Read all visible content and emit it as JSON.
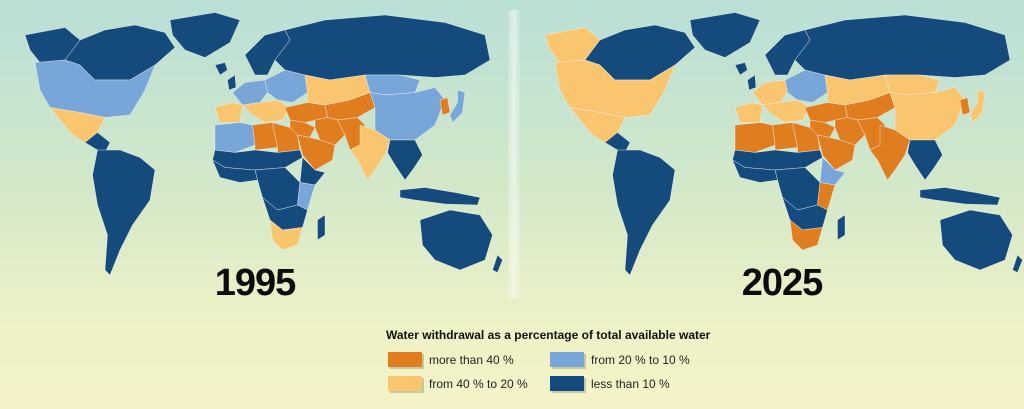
{
  "maps": [
    {
      "year": "1995",
      "regions": {
        "greenland": "less_than_10",
        "canada": "less_than_10",
        "alaska": "less_than_10",
        "usa": "20_to_10",
        "mexico": "40_to_20",
        "central_america": "less_than_10",
        "south_america": "less_than_10",
        "iceland_uk": "less_than_10",
        "west_europe": "20_to_10",
        "iberia": "40_to_20",
        "italy_balkans": "40_to_20",
        "scandinavia": "less_than_10",
        "east_europe": "20_to_10",
        "russia": "less_than_10",
        "north_africa_west": "20_to_10",
        "north_africa_east": "more_than_40",
        "libya_egypt": "more_than_40",
        "sahel": "less_than_10",
        "west_africa": "less_than_10",
        "central_africa": "less_than_10",
        "horn_of_africa": "less_than_10",
        "east_africa": "20_to_10",
        "southern_africa_west": "less_than_10",
        "south_africa": "40_to_20",
        "madagascar": "less_than_10",
        "middle_east": "more_than_40",
        "arabia": "more_than_40",
        "iran": "more_than_40",
        "caucasus_turkey": "more_than_40",
        "central_asia": "more_than_40",
        "kazakhstan": "40_to_20",
        "afghanistan_pakistan": "more_than_40",
        "india": "40_to_20",
        "china": "20_to_10",
        "mongolia": "20_to_10",
        "korea": "more_than_40",
        "japan": "20_to_10",
        "southeast_asia": "less_than_10",
        "indonesia": "less_than_10",
        "australia": "less_than_10",
        "new_zealand": "less_than_10"
      }
    },
    {
      "year": "2025",
      "regions": {
        "greenland": "less_than_10",
        "canada": "less_than_10",
        "alaska": "40_to_20",
        "usa": "40_to_20",
        "mexico": "40_to_20",
        "central_america": "less_than_10",
        "south_america": "less_than_10",
        "iceland_uk": "less_than_10",
        "west_europe": "40_to_20",
        "iberia": "40_to_20",
        "italy_balkans": "40_to_20",
        "scandinavia": "less_than_10",
        "east_europe": "20_to_10",
        "russia": "less_than_10",
        "north_africa_west": "more_than_40",
        "north_africa_east": "more_than_40",
        "libya_egypt": "more_than_40",
        "sahel": "less_than_10",
        "west_africa": "less_than_10",
        "central_africa": "less_than_10",
        "horn_of_africa": "20_to_10",
        "east_africa": "more_than_40",
        "southern_africa_west": "less_than_10",
        "south_africa": "more_than_40",
        "madagascar": "less_than_10",
        "middle_east": "more_than_40",
        "arabia": "more_than_40",
        "iran": "more_than_40",
        "caucasus_turkey": "more_than_40",
        "central_asia": "more_than_40",
        "kazakhstan": "40_to_20",
        "afghanistan_pakistan": "more_than_40",
        "india": "more_than_40",
        "china": "40_to_20",
        "mongolia": "40_to_20",
        "korea": "more_than_40",
        "japan": "40_to_20",
        "southeast_asia": "less_than_10",
        "indonesia": "less_than_10",
        "australia": "less_than_10",
        "new_zealand": "less_than_10"
      }
    }
  ],
  "legend": {
    "title": "Water withdrawal as a percentage of total available water",
    "items": [
      {
        "key": "more_than_40",
        "label": "more than 40 %",
        "color": "#e07e1f"
      },
      {
        "key": "40_to_20",
        "label": "from 40 % to 20 %",
        "color": "#f9c56e"
      },
      {
        "key": "20_to_10",
        "label": "from 20 % to 10 %",
        "color": "#78a6d8"
      },
      {
        "key": "less_than_10",
        "label": "less than 10 %",
        "color": "#154a7d"
      }
    ]
  }
}
